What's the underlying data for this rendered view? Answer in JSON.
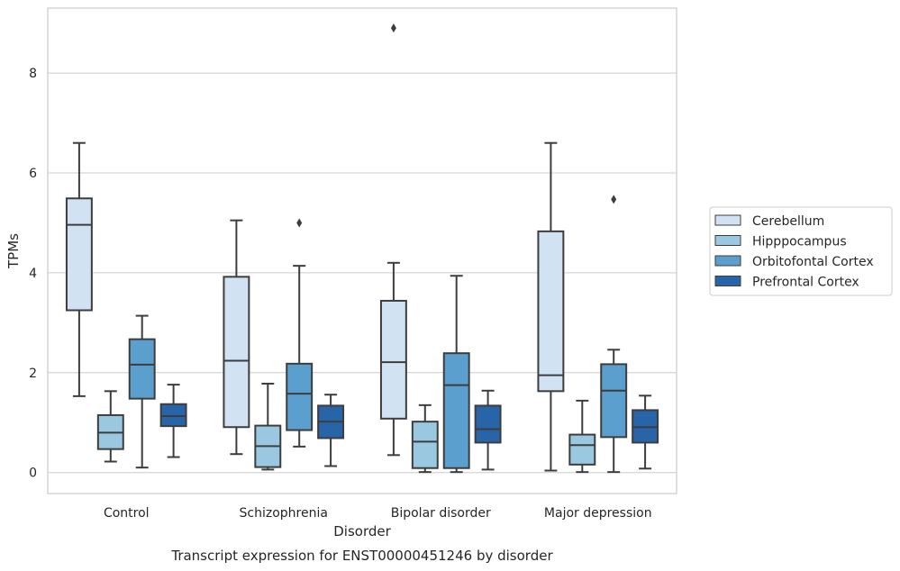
{
  "chart_data": {
    "type": "box",
    "title": "",
    "caption": "Transcript expression for ENST00000451246 by disorder",
    "xlabel": "Disorder",
    "ylabel": "TPMs",
    "ylim": [
      -0.42,
      9.3
    ],
    "yticks": [
      0,
      2,
      4,
      6,
      8
    ],
    "ytick_labels": [
      "0",
      "2",
      "4",
      "6",
      "8"
    ],
    "grid": true,
    "legend_position": "right",
    "categories": [
      "Control",
      "Schizophrenia",
      "Bipolar disorder",
      "Major depression"
    ],
    "series": [
      {
        "name": "Cerebellum",
        "color": "#d1e2f2",
        "boxes": [
          {
            "whisker_low": 1.53,
            "q1": 3.25,
            "median": 4.96,
            "q3": 5.49,
            "whisker_high": 6.6,
            "outliers": []
          },
          {
            "whisker_low": 0.37,
            "q1": 0.91,
            "median": 2.24,
            "q3": 3.92,
            "whisker_high": 5.05,
            "outliers": []
          },
          {
            "whisker_low": 0.35,
            "q1": 1.08,
            "median": 2.21,
            "q3": 3.44,
            "whisker_high": 4.2,
            "outliers": [
              8.9
            ]
          },
          {
            "whisker_low": 0.04,
            "q1": 1.63,
            "median": 1.95,
            "q3": 4.83,
            "whisker_high": 6.6,
            "outliers": []
          }
        ]
      },
      {
        "name": "Hipppocampus",
        "color": "#9ac8e0",
        "boxes": [
          {
            "whisker_low": 0.22,
            "q1": 0.47,
            "median": 0.8,
            "q3": 1.15,
            "whisker_high": 1.63,
            "outliers": []
          },
          {
            "whisker_low": 0.06,
            "q1": 0.11,
            "median": 0.53,
            "q3": 0.94,
            "whisker_high": 1.78,
            "outliers": []
          },
          {
            "whisker_low": 0.01,
            "q1": 0.09,
            "median": 0.62,
            "q3": 1.02,
            "whisker_high": 1.35,
            "outliers": []
          },
          {
            "whisker_low": 0.01,
            "q1": 0.16,
            "median": 0.55,
            "q3": 0.76,
            "whisker_high": 1.44,
            "outliers": []
          }
        ]
      },
      {
        "name": "Orbitofontal Cortex",
        "color": "#5a9fcd",
        "boxes": [
          {
            "whisker_low": 0.1,
            "q1": 1.48,
            "median": 2.16,
            "q3": 2.67,
            "whisker_high": 3.14,
            "outliers": []
          },
          {
            "whisker_low": 0.52,
            "q1": 0.85,
            "median": 1.58,
            "q3": 2.18,
            "whisker_high": 4.14,
            "outliers": [
              5.0
            ]
          },
          {
            "whisker_low": 0.01,
            "q1": 0.09,
            "median": 1.75,
            "q3": 2.39,
            "whisker_high": 3.94,
            "outliers": []
          },
          {
            "whisker_low": 0.01,
            "q1": 0.71,
            "median": 1.64,
            "q3": 2.17,
            "whisker_high": 2.46,
            "outliers": [
              5.47
            ]
          }
        ]
      },
      {
        "name": "Prefrontal Cortex",
        "color": "#2864a8",
        "boxes": [
          {
            "whisker_low": 0.31,
            "q1": 0.93,
            "median": 1.13,
            "q3": 1.37,
            "whisker_high": 1.76,
            "outliers": []
          },
          {
            "whisker_low": 0.13,
            "q1": 0.69,
            "median": 1.02,
            "q3": 1.34,
            "whisker_high": 1.56,
            "outliers": []
          },
          {
            "whisker_low": 0.06,
            "q1": 0.6,
            "median": 0.87,
            "q3": 1.34,
            "whisker_high": 1.64,
            "outliers": []
          },
          {
            "whisker_low": 0.08,
            "q1": 0.6,
            "median": 0.91,
            "q3": 1.25,
            "whisker_high": 1.54,
            "outliers": []
          }
        ]
      }
    ]
  }
}
